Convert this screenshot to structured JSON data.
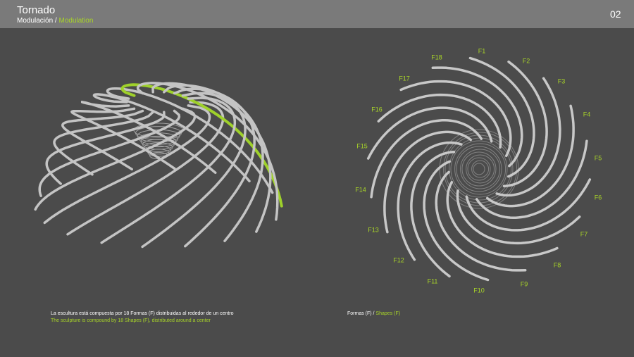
{
  "header": {
    "title": "Tornado",
    "subtitle_es": "Modulación /",
    "subtitle_en": "Modulation",
    "page": "02"
  },
  "labels": [
    "F1",
    "F2",
    "F3",
    "F4",
    "F5",
    "F6",
    "F7",
    "F8",
    "F9",
    "F10",
    "F11",
    "F12",
    "F13",
    "F14",
    "F15",
    "F16",
    "F17",
    "F18"
  ],
  "caption_left": {
    "es": "La escultura está compuesta por 18 Formas (F) distribuidas al rededor de un centro",
    "en": "The sculpture is compound by 18 Shapes (F), distributed around a center"
  },
  "caption_right": {
    "es": "Formas (F) /",
    "en": "Shapes (F)"
  }
}
